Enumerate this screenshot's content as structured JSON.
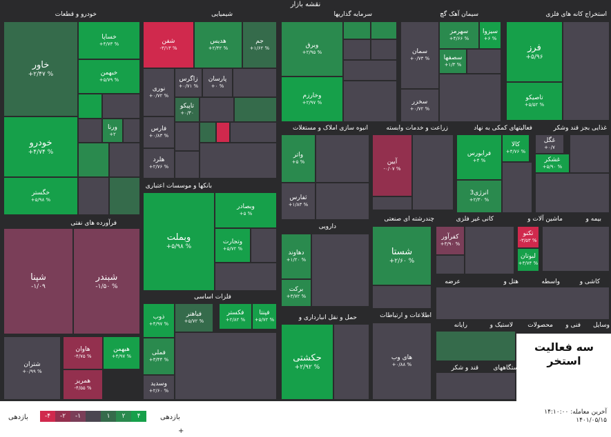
{
  "map_title": "نقشه بازار",
  "sections": {
    "auto": "خودرو و قطعات",
    "chem": "شیمیایی",
    "invest": "سرمایه گذاریها",
    "cement": "سیمان آهک گچ",
    "mining": "استخراج کانه های فلزی",
    "oil": "فرآورده های نفتی",
    "bank": "بانکها و موسسات اعتباری",
    "realestate": "انبوه سازی املاک و مستغلات",
    "agri": "زراعت و خدمات وابسته",
    "support": "فعالیتهای کمکی به نهاد",
    "sugar": "غذایی بجز قند وشکر",
    "pharma": "دارویی",
    "multi": "چندرشته ای صنعتی",
    "nonmetal": "کانی غیر فلزی",
    "machines": "ماشین آلات و",
    "insurance": "بیمه و",
    "metals": "فلزات اساسی",
    "transport": "حمل و نقل انبارداری و",
    "ict": "اطلاعات و ارتباطات",
    "supply": "عرضه",
    "hotel": "هتل و",
    "broker": "واسطه",
    "tile": "کاشی و",
    "computer": "رایانه",
    "rubber": "لاستیک و",
    "products": "محصولات",
    "tech": "فنی و",
    "vehicles": "وسایل",
    "sugar2": "قند و شکر",
    "devices": "دستگاههای"
  },
  "tiles": {
    "khavar": {
      "name": "خاور",
      "value": "+۲/۴۷ %"
    },
    "khasapa": {
      "name": "خساپا",
      "value": "+۴/۷۳ %"
    },
    "khebahman": {
      "name": "خبهمن",
      "value": "+۵/۷۹ %"
    },
    "khodro": {
      "name": "خودرو",
      "value": "+۴/۷۴ %"
    },
    "vartan": {
      "name": "ورنا",
      "value": "+۲"
    },
    "khegostar": {
      "name": "خگستر",
      "value": "+۵/۹۸ %"
    },
    "shaphan": {
      "name": "شفن",
      "value": "-۳/۱۳ %"
    },
    "hadis": {
      "name": "هدیس",
      "value": "+۲/۴۲ %"
    },
    "jam": {
      "name": "جم",
      "value": "+۱/۶۲ %"
    },
    "nouri": {
      "name": "نوری",
      "value": "+۰/۷۲ %"
    },
    "zagros": {
      "name": "زاگرس",
      "value": "+۰/۷۱ %"
    },
    "parsan": {
      "name": "پارسان",
      "value": "+۰ %"
    },
    "tapiko": {
      "name": "تاپیکو",
      "value": "+۰/۴۰"
    },
    "fars": {
      "name": "فارس",
      "value": "+۰/۸۳ %"
    },
    "hamra": {
      "name": "هلرد",
      "value": "+۲/۷۶ %"
    },
    "vebargh": {
      "name": "وبرق",
      "value": "+۲/۹۵ %"
    },
    "vekharazm": {
      "name": "وخارزم",
      "value": "+۲/۹۷ %"
    },
    "sahromz": {
      "name": "سهرمز",
      "value": "+۴/۶۶ %"
    },
    "sasiza": {
      "name": "سیزوا",
      "value": "+۶ %"
    },
    "saman": {
      "name": "سمان",
      "value": "+۰/۷۳ %"
    },
    "sasfaha": {
      "name": "سصفها",
      "value": "+۱/۳ %"
    },
    "sakhazar": {
      "name": "سخزر",
      "value": "+۰/۷۲ %"
    },
    "faraz": {
      "name": "فرز",
      "value": "+۵/۹۶"
    },
    "tasiko": {
      "name": "تاصیکو",
      "value": "+۵/۵۲ %"
    },
    "shepna": {
      "name": "شپنا",
      "value": "-۱/۰۹"
    },
    "shebandar": {
      "name": "شبندر",
      "value": "-۱/۵۰ %"
    },
    "shetran": {
      "name": "شتران",
      "value": "+۰/۹۹ %"
    },
    "havan": {
      "name": "هاوان",
      "value": "-۴/۷۵ %"
    },
    "hebahman": {
      "name": "هبهمن",
      "value": "+۴/۹۷ %"
    },
    "hemriz": {
      "name": "همریز",
      "value": "-۴/۵۵ %"
    },
    "vebemellat": {
      "name": "وبملت",
      "value": "+۵/۹۸ %"
    },
    "vebesader": {
      "name": "وبصادر",
      "value": "+۵ %"
    },
    "vetejarat": {
      "name": "وتجارت",
      "value": "+۵/۷۲ %"
    },
    "vatar": {
      "name": "واتر",
      "value": "+۵ %"
    },
    "tesfars": {
      "name": "ثفارس",
      "value": "+۱/۸۳ %"
    },
    "ayin": {
      "name": "آیین",
      "value": "-۰/۰۷ %"
    },
    "faravaran": {
      "name": "فرابورس",
      "value": "+۴ %"
    },
    "energy3": {
      "name": "انرژی3",
      "value": "+۲/۳۰ %"
    },
    "kala": {
      "name": "کالا",
      "value": "+۴/۷۶ %"
    },
    "ghegol": {
      "name": "غگل",
      "value": "+۰/۷"
    },
    "gheshkar": {
      "name": "غشکر",
      "value": "+۵/۹۰ %"
    },
    "deamavand": {
      "name": "دهاوند",
      "value": "+۱/۲۰ %"
    },
    "barket": {
      "name": "برکت",
      "value": "+۳/۷۲ %"
    },
    "shesta": {
      "name": "شستا",
      "value": "+۲/۶۰ %"
    },
    "kefaravar": {
      "name": "کفرآور",
      "value": "+۳/۹۰ %"
    },
    "tekno": {
      "name": "تکنو",
      "value": "-۳/۵۳ %"
    },
    "lotan": {
      "name": "لبوتان",
      "value": "+۳/۷۴ %"
    },
    "khouzan": {
      "name": "ذوب",
      "value": "+۴/۹۷ %"
    },
    "fahagar": {
      "name": "فباهنر",
      "value": "+۵/۷۲ %"
    },
    "fakashtar": {
      "name": "فکستر",
      "value": "+۲/۸۲ %"
    },
    "fepita": {
      "name": "فپنتا",
      "value": "+۵/۷۲ %"
    },
    "famali": {
      "name": "فملی",
      "value": "+۳/۴۴ %"
    },
    "vesadid": {
      "name": "وسدید",
      "value": "+۲/۶۰ %"
    },
    "hekashti": {
      "name": "حکشتی",
      "value": "+۲/۹۲ %"
    },
    "hiweb": {
      "name": "های وب",
      "value": "+۰/۸۸ %"
    }
  },
  "overlay_title": "سه فعالیت استخر",
  "bottom": {
    "legend_label_left": "بازدهی",
    "legend_label_right": "بازدهی",
    "legend": [
      "-۴",
      "-۲",
      "-۱",
      "",
      "۱",
      "۲",
      "۴"
    ],
    "legend_colors": [
      "#d0294d",
      "#93304e",
      "#7a3e58",
      "#4a4650",
      "#356b4b",
      "#2a8a4e",
      "#16a04a"
    ],
    "update_line1": "آخرین معامله: ۱۴:۱۰:۰۰",
    "update_line2": "۱۴۰۱/۰۵/۱۵",
    "plus": "+"
  }
}
